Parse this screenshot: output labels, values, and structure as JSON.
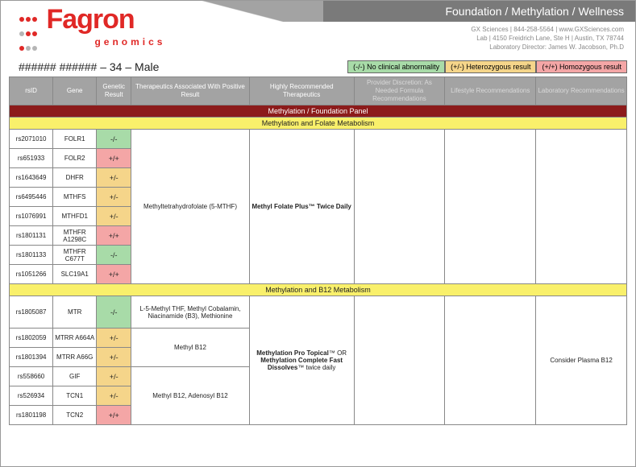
{
  "header": {
    "brand_main": "Fagron",
    "brand_sub": "genomics",
    "title": "Foundation / Methylation / Wellness",
    "info_lines": [
      "GX Sciences | 844-258-5564 | www.GXSciences.com",
      "Lab | 4150 Freidrich Lane, Ste H | Austin, TX 78744",
      "Laboratory Director: James W. Jacobson, Ph.D"
    ]
  },
  "patient": "###### ###### – 34 – Male",
  "legend": {
    "g": "(-/-) No clinical abnormality",
    "y": "(+/-) Heterozygous result",
    "r": "(+/+) Homozygous result"
  },
  "columns": {
    "c1": "rsID",
    "c2": "Gene",
    "c3": "Genetic Result",
    "c4": "Therapeutics Associated With Positive Result",
    "c5": "Highly Recommended Therapeutics",
    "c6": "Provider Discretion: As Needed Formula Recommendations",
    "c7": "Lifestyle Recommendations",
    "c8": "Laboratory Recommendations"
  },
  "panel_title": "Methylation / Foundation Panel",
  "sections": [
    {
      "title": "Methylation and Folate Metabolism",
      "therapeutic": "Methyltetrahydrofolate (5-MTHF)",
      "highly_rec": "Methyl Folate Plus™ Twice Daily",
      "provider": "",
      "lifestyle": "",
      "lab": "",
      "rows": [
        {
          "rsid": "rs2071010",
          "gene": "FOLR1",
          "res": "-/-",
          "cls": "res-g"
        },
        {
          "rsid": "rs651933",
          "gene": "FOLR2",
          "res": "+/+",
          "cls": "res-r"
        },
        {
          "rsid": "rs1643649",
          "gene": "DHFR",
          "res": "+/-",
          "cls": "res-y"
        },
        {
          "rsid": "rs6495446",
          "gene": "MTHFS",
          "res": "+/-",
          "cls": "res-y"
        },
        {
          "rsid": "rs1076991",
          "gene": "MTHFD1",
          "res": "+/-",
          "cls": "res-y"
        },
        {
          "rsid": "rs1801131",
          "gene": "MTHFR A1298C",
          "res": "+/+",
          "cls": "res-r"
        },
        {
          "rsid": "rs1801133",
          "gene": "MTHFR C677T",
          "res": "-/-",
          "cls": "res-g"
        },
        {
          "rsid": "rs1051266",
          "gene": "SLC19A1",
          "res": "+/+",
          "cls": "res-r"
        }
      ]
    },
    {
      "title": "Methylation and B12 Metabolism",
      "highly_rec_html": "<b>Methylation Pro Topical</b>™ OR <b>Methylation Complete Fast Dissolves</b>™ twice daily",
      "provider": "",
      "lifestyle": "",
      "lab": "Consider Plasma B12",
      "groups": [
        {
          "therapeutic": "L-5-Methyl THF, Methyl Cobalamin, Niacinamide (B3), Methionine",
          "rows": [
            {
              "rsid": "rs1805087",
              "gene": "MTR",
              "res": "-/-",
              "cls": "res-g"
            }
          ]
        },
        {
          "therapeutic": "Methyl B12",
          "rows": [
            {
              "rsid": "rs1802059",
              "gene": "MTRR A664A",
              "res": "+/-",
              "cls": "res-y"
            },
            {
              "rsid": "rs1801394",
              "gene": "MTRR A66G",
              "res": "+/-",
              "cls": "res-y"
            }
          ]
        },
        {
          "therapeutic": "Methyl B12, Adenosyl B12",
          "rows": [
            {
              "rsid": "rs558660",
              "gene": "GIF",
              "res": "+/-",
              "cls": "res-y"
            },
            {
              "rsid": "rs526934",
              "gene": "TCN1",
              "res": "+/-",
              "cls": "res-y"
            },
            {
              "rsid": "rs1801198",
              "gene": "TCN2",
              "res": "+/+",
              "cls": "res-r"
            }
          ]
        }
      ]
    }
  ],
  "colors": {
    "red": "#e02826",
    "hdr_gray": "#a3a3a3",
    "hdr_dark": "#7a7a7a",
    "panel": "#8c1b1b",
    "section": "#f9f06b",
    "g": "#a8dba8",
    "y": "#f5d58a",
    "r": "#f4a6a6",
    "border": "#888"
  }
}
